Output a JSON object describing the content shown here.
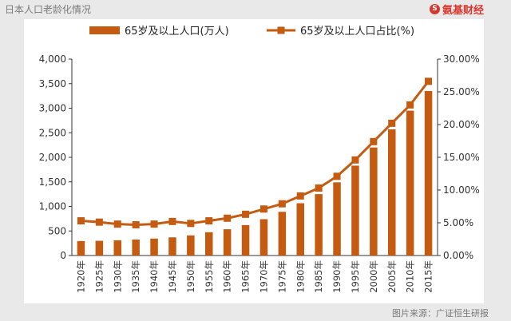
{
  "page_title": "日本人口老龄化情况",
  "brand": {
    "icon": "S",
    "name": "氨基财经"
  },
  "source": "图片来源：广证恒生研报",
  "colors": {
    "bar": "#c55a11",
    "line": "#c55a11",
    "axis": "#333333"
  },
  "chart_data": {
    "type": "bar+line",
    "title": "",
    "categories": [
      "1920年",
      "1925年",
      "1930年",
      "1935年",
      "1940年",
      "1945年",
      "1950年",
      "1955年",
      "1960年",
      "1965年",
      "1970年",
      "1975年",
      "1980年",
      "1985年",
      "1990年",
      "1995年",
      "2000年",
      "2005年",
      "2010年",
      "2015年"
    ],
    "series": [
      {
        "name": "65岁及以上人口(万人)",
        "type": "bar",
        "axis": "left",
        "values": [
          295,
          300,
          310,
          325,
          345,
          370,
          410,
          475,
          535,
          620,
          740,
          890,
          1065,
          1250,
          1490,
          1830,
          2200,
          2570,
          2950,
          3350
        ]
      },
      {
        "name": "65岁及以上人口占比(%)",
        "type": "line",
        "axis": "right",
        "values": [
          5.3,
          5.1,
          4.8,
          4.7,
          4.8,
          5.2,
          4.9,
          5.3,
          5.7,
          6.3,
          7.1,
          7.9,
          9.1,
          10.3,
          12.1,
          14.6,
          17.4,
          20.2,
          23.0,
          26.6
        ]
      }
    ],
    "y_left": {
      "min": 0,
      "max": 4000,
      "ticks": [
        "0",
        "500",
        "1,000",
        "1,500",
        "2,000",
        "2,500",
        "3,000",
        "3,500",
        "4,000"
      ]
    },
    "y_right": {
      "min": 0,
      "max": 30,
      "ticks": [
        "0.00%",
        "5.00%",
        "10.00%",
        "15.00%",
        "20.00%",
        "25.00%",
        "30.00%"
      ]
    },
    "legend_position": "top"
  }
}
